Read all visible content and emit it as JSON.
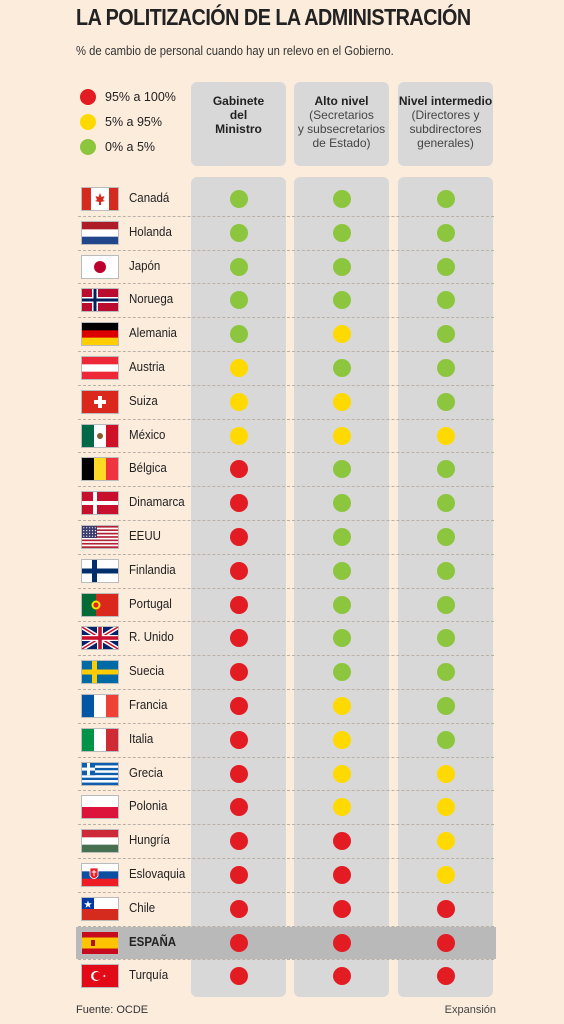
{
  "title": "LA POLITIZACIÓN DE LA ADMINISTRACIÓN",
  "subtitle": "% de cambio de personal cuando hay un relevo en el Gobierno.",
  "source": "Fuente: OCDE",
  "credit": "Expansión",
  "colors": {
    "red": "#e31c23",
    "yellow": "#ffd900",
    "green": "#8cc63f",
    "background": "#fcecdc",
    "column": "#d8d8d8",
    "highlight_row": "#b9b9b9"
  },
  "chart_data": {
    "type": "table",
    "legend": [
      {
        "key": "red",
        "label": "95% a 100%"
      },
      {
        "key": "yellow",
        "label": "5% a 95%"
      },
      {
        "key": "green",
        "label": "0% a 5%"
      }
    ],
    "columns": [
      {
        "title": "Gabinete del Ministro",
        "title_lines": [
          "Gabinete",
          "del",
          "Ministro"
        ],
        "sub_lines": []
      },
      {
        "title": "Alto nivel",
        "title_lines": [
          "Alto nivel"
        ],
        "sub_lines": [
          "(Secretarios",
          "y subsecretarios",
          "de Estado)"
        ]
      },
      {
        "title": "Nivel intermedio",
        "title_lines": [
          "Nivel intermedio"
        ],
        "sub_lines": [
          "(Directores y",
          "subdirectores",
          "generales)"
        ]
      }
    ],
    "rows": [
      {
        "country": "Canadá",
        "flag": "canada-flag-icon",
        "values": [
          "green",
          "green",
          "green"
        ]
      },
      {
        "country": "Holanda",
        "flag": "netherlands-flag-icon",
        "values": [
          "green",
          "green",
          "green"
        ]
      },
      {
        "country": "Japón",
        "flag": "japan-flag-icon",
        "values": [
          "green",
          "green",
          "green"
        ]
      },
      {
        "country": "Noruega",
        "flag": "norway-flag-icon",
        "values": [
          "green",
          "green",
          "green"
        ]
      },
      {
        "country": "Alemania",
        "flag": "germany-flag-icon",
        "values": [
          "green",
          "yellow",
          "green"
        ]
      },
      {
        "country": "Austria",
        "flag": "austria-flag-icon",
        "values": [
          "yellow",
          "green",
          "green"
        ]
      },
      {
        "country": "Suiza",
        "flag": "switzerland-flag-icon",
        "values": [
          "yellow",
          "yellow",
          "green"
        ]
      },
      {
        "country": "México",
        "flag": "mexico-flag-icon",
        "values": [
          "yellow",
          "yellow",
          "yellow"
        ]
      },
      {
        "country": "Bélgica",
        "flag": "belgium-flag-icon",
        "values": [
          "red",
          "green",
          "green"
        ]
      },
      {
        "country": "Dinamarca",
        "flag": "denmark-flag-icon",
        "values": [
          "red",
          "green",
          "green"
        ]
      },
      {
        "country": "EEUU",
        "flag": "usa-flag-icon",
        "values": [
          "red",
          "green",
          "green"
        ]
      },
      {
        "country": "Finlandia",
        "flag": "finland-flag-icon",
        "values": [
          "red",
          "green",
          "green"
        ]
      },
      {
        "country": "Portugal",
        "flag": "portugal-flag-icon",
        "values": [
          "red",
          "green",
          "green"
        ]
      },
      {
        "country": "R. Unido",
        "flag": "uk-flag-icon",
        "values": [
          "red",
          "green",
          "green"
        ]
      },
      {
        "country": "Suecia",
        "flag": "sweden-flag-icon",
        "values": [
          "red",
          "green",
          "green"
        ]
      },
      {
        "country": "Francia",
        "flag": "france-flag-icon",
        "values": [
          "red",
          "yellow",
          "green"
        ]
      },
      {
        "country": "Italia",
        "flag": "italy-flag-icon",
        "values": [
          "red",
          "yellow",
          "green"
        ]
      },
      {
        "country": "Grecia",
        "flag": "greece-flag-icon",
        "values": [
          "red",
          "yellow",
          "yellow"
        ]
      },
      {
        "country": "Polonia",
        "flag": "poland-flag-icon",
        "values": [
          "red",
          "yellow",
          "yellow"
        ]
      },
      {
        "country": "Hungría",
        "flag": "hungary-flag-icon",
        "values": [
          "red",
          "red",
          "yellow"
        ]
      },
      {
        "country": "Eslovaquia",
        "flag": "slovakia-flag-icon",
        "values": [
          "red",
          "red",
          "yellow"
        ]
      },
      {
        "country": "Chile",
        "flag": "chile-flag-icon",
        "values": [
          "red",
          "red",
          "red"
        ]
      },
      {
        "country": "ESPAÑA",
        "flag": "spain-flag-icon",
        "values": [
          "red",
          "red",
          "red"
        ],
        "highlight": true
      },
      {
        "country": "Turquía",
        "flag": "turkey-flag-icon",
        "values": [
          "red",
          "red",
          "red"
        ]
      }
    ]
  }
}
